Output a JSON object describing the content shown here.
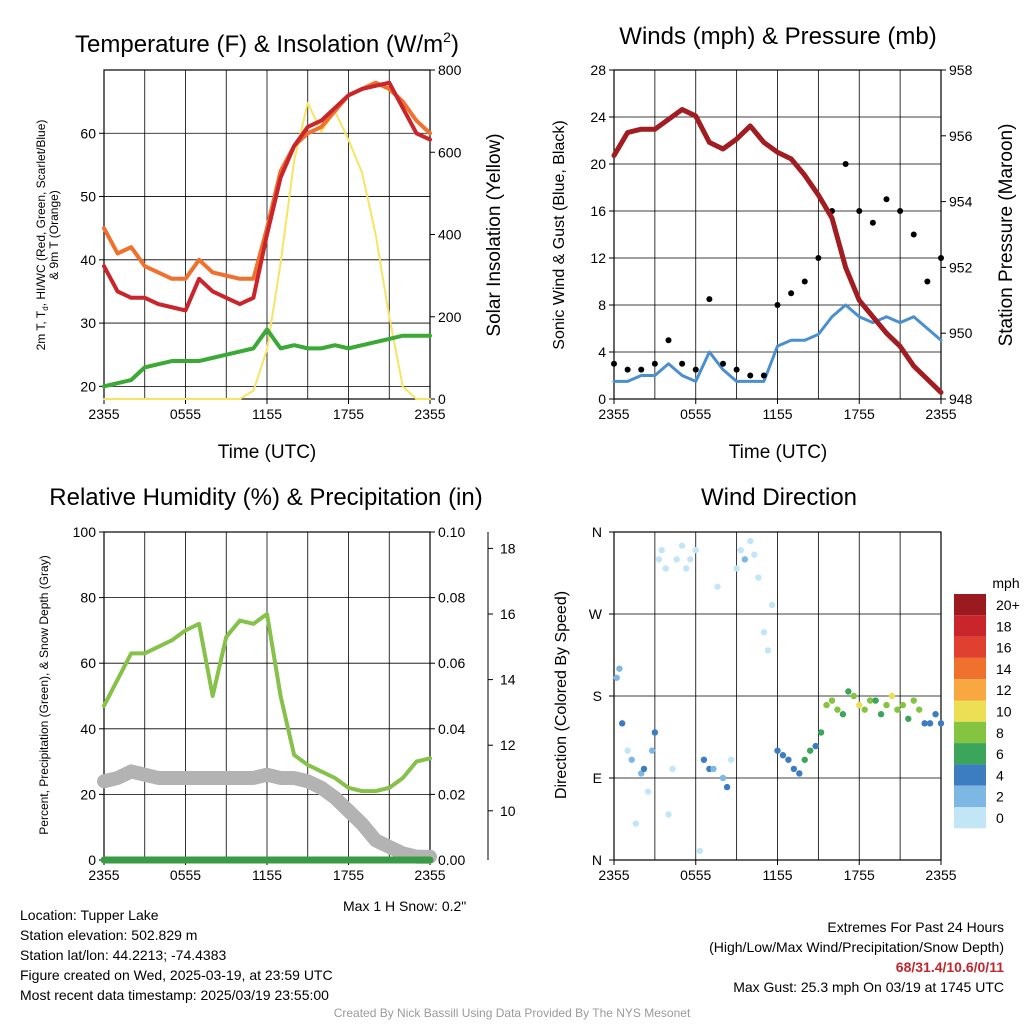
{
  "panels": {
    "temperature": {
      "title": "Temperature (F) & Insolation (W/m",
      "title_sup": "2",
      "title_end": ")",
      "y_left_label_lines": [
        "2m T, T",
        "d",
        ", HI/WC (Red, Green, Scarlet/Blue)",
        "& 9m T (Orange)"
      ],
      "y_right_label": "Solar Insolation (Yellow)",
      "x_label": "Time (UTC)"
    },
    "winds": {
      "title": "Winds (mph) & Pressure (mb)",
      "y_left_label": "Sonic Wind & Gust (Blue, Black)",
      "y_right_label": "Station Pressure (Maroon)",
      "x_label": "Time (UTC)"
    },
    "humidity": {
      "title": "Relative Humidity (%) & Precipitation (in)",
      "y_left_label": "Percent, Precipitation (Green), & Snow Depth (Gray)",
      "snow_max": "Max 1 H Snow: 0.2\""
    },
    "direction": {
      "title": "Wind Direction",
      "y_left_label": "Direction (Colored By Speed)",
      "legend_unit": "mph",
      "legend": [
        {
          "label": "20+",
          "color": "#9b1a1f"
        },
        {
          "label": "18",
          "color": "#c9252b"
        },
        {
          "label": "16",
          "color": "#e0402f"
        },
        {
          "label": "14",
          "color": "#f0702e"
        },
        {
          "label": "12",
          "color": "#f9a741"
        },
        {
          "label": "10",
          "color": "#ecdf55"
        },
        {
          "label": "8",
          "color": "#84c441"
        },
        {
          "label": "6",
          "color": "#3aa55b"
        },
        {
          "label": "4",
          "color": "#3c7cc1"
        },
        {
          "label": "2",
          "color": "#7db7e3"
        },
        {
          "label": "0",
          "color": "#c3e6f7"
        }
      ]
    }
  },
  "info": {
    "location": "Location: Tupper Lake",
    "elevation": "Station elevation: 502.829 m",
    "latlon": "Station lat/lon: 44.2213; -74.4383",
    "created": "Figure created on Wed, 2025-03-19, at 23:59 UTC",
    "recent": "Most recent data timestamp: 2025/03/19 23:55:00",
    "extremes_title": "Extremes For Past 24 Hours",
    "extremes_subtitle": "(High/Low/Max Wind/Precipitation/Snow Depth)",
    "extremes_values": "68/31.4/10.6/0/11",
    "max_gust": "Max Gust: 25.3 mph On 03/19 at 1745 UTC",
    "credit": "Created By Nick Bassill Using Data Provided By The NYS Mesonet"
  },
  "chart_data": [
    {
      "type": "line",
      "title": "Temperature (F) & Insolation (W/m2)",
      "xlabel": "Time (UTC)",
      "ylabel": "2m T, Td, HI/WC (Red, Green, Scarlet/Blue) & 9m T (Orange)",
      "ylabel_right": "Solar Insolation (Yellow)",
      "x_ticks": [
        "2355",
        "0555",
        "1155",
        "1755",
        "2355"
      ],
      "x": [
        0,
        1,
        2,
        3,
        4,
        5,
        6,
        7,
        8,
        9,
        10,
        11,
        12,
        13,
        14,
        15,
        16,
        17,
        18,
        19,
        20,
        21,
        22,
        23,
        24
      ],
      "ylim": [
        18,
        70
      ],
      "ylim_right": [
        0,
        800
      ],
      "y_ticks": [
        20,
        30,
        40,
        50,
        60
      ],
      "y_ticks_right": [
        0,
        200,
        400,
        600,
        800
      ],
      "series": [
        {
          "name": "2m T",
          "color": "#c9252b",
          "axis": "left",
          "values": [
            39,
            35,
            34,
            34,
            33,
            32.5,
            32,
            37,
            35,
            34,
            33,
            34,
            44,
            53,
            58,
            61,
            62,
            64,
            66,
            67,
            67.5,
            68,
            64,
            60,
            59
          ]
        },
        {
          "name": "Td",
          "color": "#3aa935",
          "axis": "left",
          "values": [
            20,
            20.5,
            21,
            23,
            23.5,
            24,
            24,
            24,
            24.5,
            25,
            25.5,
            26,
            29,
            26,
            26.5,
            26,
            26,
            26.5,
            26,
            26.5,
            27,
            27.5,
            28,
            28,
            28
          ]
        },
        {
          "name": "9m T",
          "color": "#f0702e",
          "axis": "left",
          "values": [
            45,
            41,
            42,
            39,
            38,
            37,
            37,
            40,
            38,
            37.5,
            37,
            37,
            45,
            54,
            58,
            60,
            61,
            63.5,
            66,
            67,
            68,
            67,
            65,
            62,
            60
          ]
        },
        {
          "name": "Solar Insolation",
          "color": "#f7e463",
          "axis": "right",
          "values": [
            0,
            0,
            0,
            0,
            0,
            0,
            0,
            0,
            0,
            0,
            0,
            20,
            120,
            330,
            580,
            720,
            650,
            700,
            630,
            550,
            400,
            200,
            30,
            0,
            0
          ]
        }
      ]
    },
    {
      "type": "line",
      "title": "Winds (mph) & Pressure (mb)",
      "xlabel": "Time (UTC)",
      "ylabel": "Sonic Wind & Gust (Blue, Black)",
      "ylabel_right": "Station Pressure (Maroon)",
      "x_ticks": [
        "2355",
        "0555",
        "1155",
        "1755",
        "2355"
      ],
      "x": [
        0,
        1,
        2,
        3,
        4,
        5,
        6,
        7,
        8,
        9,
        10,
        11,
        12,
        13,
        14,
        15,
        16,
        17,
        18,
        19,
        20,
        21,
        22,
        23,
        24
      ],
      "ylim": [
        0,
        28
      ],
      "ylim_right": [
        948,
        958
      ],
      "y_ticks": [
        0,
        4,
        8,
        12,
        16,
        20,
        24,
        28
      ],
      "y_ticks_right": [
        948,
        950,
        952,
        954,
        956,
        958
      ],
      "series": [
        {
          "name": "Sonic Wind",
          "color": "#4a8fd0",
          "axis": "left",
          "values": [
            1.5,
            1.5,
            2,
            2,
            3,
            2,
            1.5,
            4,
            2.5,
            1.5,
            1.5,
            1.5,
            4.5,
            5,
            5,
            5.5,
            7,
            8,
            7,
            6.5,
            7,
            6.5,
            7,
            6,
            5
          ]
        },
        {
          "name": "Gust",
          "color": "#000000",
          "axis": "left",
          "values": [
            3,
            2.5,
            2.5,
            3,
            5,
            3,
            2.5,
            8.5,
            3,
            2.5,
            2,
            2,
            8,
            9,
            10,
            12,
            16,
            20,
            16,
            15,
            17,
            16,
            14,
            10,
            12
          ]
        },
        {
          "name": "Station Pressure",
          "color": "#a11d21",
          "axis": "right",
          "values": [
            955.4,
            956.1,
            956.2,
            956.2,
            956.5,
            956.8,
            956.6,
            955.8,
            955.6,
            955.9,
            956.3,
            955.8,
            955.5,
            955.3,
            954.8,
            954.2,
            953.5,
            952.0,
            951.0,
            950.5,
            950.0,
            949.6,
            949.0,
            948.6,
            948.2
          ]
        }
      ]
    },
    {
      "type": "line",
      "title": "Relative Humidity (%) & Precipitation (in)",
      "ylabel": "Percent, Precipitation (Green), & Snow Depth (Gray)",
      "x_ticks": [
        "2355",
        "0555",
        "1155",
        "1755",
        "2355"
      ],
      "x": [
        0,
        1,
        2,
        3,
        4,
        5,
        6,
        7,
        8,
        9,
        10,
        11,
        12,
        13,
        14,
        15,
        16,
        17,
        18,
        19,
        20,
        21,
        22,
        23,
        24
      ],
      "ylim": [
        0,
        100
      ],
      "ylim_right": [
        0,
        0.1
      ],
      "ylim_snow": [
        8.5,
        18.5
      ],
      "y_ticks": [
        0,
        20,
        40,
        60,
        80,
        100
      ],
      "y_ticks_right": [
        "0.00",
        "0.02",
        "0.04",
        "0.06",
        "0.08",
        "0.10"
      ],
      "y_ticks_snow": [
        10,
        12,
        14,
        16,
        18
      ],
      "series": [
        {
          "name": "Relative Humidity",
          "color": "#86c24a",
          "axis": "left",
          "values": [
            47,
            55,
            63,
            63,
            65,
            67,
            70,
            72,
            50,
            68,
            73,
            72,
            75,
            50,
            32,
            29,
            27,
            25,
            22,
            21,
            21,
            22,
            25,
            30,
            31
          ]
        },
        {
          "name": "Precipitation",
          "color": "#3a9a45",
          "axis": "right",
          "values": [
            0,
            0,
            0,
            0,
            0,
            0,
            0,
            0,
            0,
            0,
            0,
            0,
            0,
            0,
            0,
            0,
            0,
            0,
            0,
            0,
            0,
            0,
            0,
            0,
            0
          ]
        },
        {
          "name": "Snow Depth",
          "color": "#b3b3b3",
          "axis": "snow",
          "values": [
            10.9,
            11.0,
            11.2,
            11.1,
            11.0,
            11.0,
            11.0,
            11.0,
            11.0,
            11.0,
            11.0,
            11.0,
            11.1,
            11.0,
            11.0,
            10.9,
            10.7,
            10.4,
            10.0,
            9.6,
            9.1,
            8.9,
            8.7,
            8.6,
            8.6
          ]
        }
      ]
    },
    {
      "type": "scatter",
      "title": "Wind Direction",
      "ylabel": "Direction (Colored By Speed)",
      "x_ticks": [
        "2355",
        "0555",
        "1155",
        "1755",
        "2355"
      ],
      "y_ticks": [
        "N",
        "E",
        "S",
        "W",
        "N"
      ],
      "ylim": [
        0,
        360
      ],
      "color_scale": [
        0,
        2,
        4,
        6,
        8,
        10,
        12,
        14,
        16,
        18,
        20
      ],
      "x": [
        0.2,
        0.4,
        0.6,
        1.0,
        1.3,
        1.6,
        2.0,
        2.2,
        2.5,
        2.8,
        3.0,
        3.3,
        3.5,
        3.8,
        4.0,
        4.3,
        4.6,
        5.0,
        5.3,
        5.6,
        6.0,
        6.3,
        6.6,
        7.0,
        7.3,
        7.6,
        8.0,
        8.3,
        8.6,
        9.0,
        9.3,
        9.6,
        10.0,
        10.3,
        10.6,
        11.0,
        11.3,
        11.6,
        12.0,
        12.4,
        12.8,
        13.2,
        13.6,
        14.0,
        14.4,
        14.8,
        15.2,
        15.6,
        16.0,
        16.4,
        16.8,
        17.2,
        17.6,
        18.0,
        18.4,
        18.8,
        19.2,
        19.6,
        20.0,
        20.4,
        20.8,
        21.2,
        21.6,
        22.0,
        22.4,
        22.8,
        23.2,
        23.6,
        24.0
      ],
      "values": [
        200,
        210,
        150,
        120,
        110,
        40,
        95,
        100,
        75,
        120,
        140,
        330,
        340,
        320,
        50,
        100,
        330,
        345,
        320,
        330,
        340,
        10,
        110,
        100,
        100,
        300,
        90,
        80,
        110,
        320,
        340,
        330,
        350,
        335,
        310,
        250,
        230,
        280,
        120,
        115,
        110,
        100,
        95,
        110,
        120,
        125,
        140,
        170,
        175,
        165,
        160,
        185,
        180,
        170,
        165,
        175,
        175,
        160,
        170,
        180,
        165,
        170,
        155,
        175,
        165,
        150,
        150,
        160,
        150
      ],
      "speeds": [
        2,
        3,
        4,
        1,
        2,
        0,
        3,
        4,
        1,
        2,
        4,
        0,
        1,
        1,
        0,
        0,
        1,
        1,
        0,
        1,
        1,
        0,
        4,
        4,
        3,
        0,
        2,
        4,
        1,
        1,
        1,
        2,
        1,
        1,
        0,
        1,
        1,
        0,
        4,
        5,
        5,
        5,
        4,
        6,
        6,
        5,
        7,
        8,
        9,
        8,
        7,
        6,
        9,
        10,
        9,
        8,
        7,
        6,
        9,
        10,
        8,
        9,
        6,
        9,
        8,
        4,
        5,
        4,
        4
      ]
    }
  ]
}
